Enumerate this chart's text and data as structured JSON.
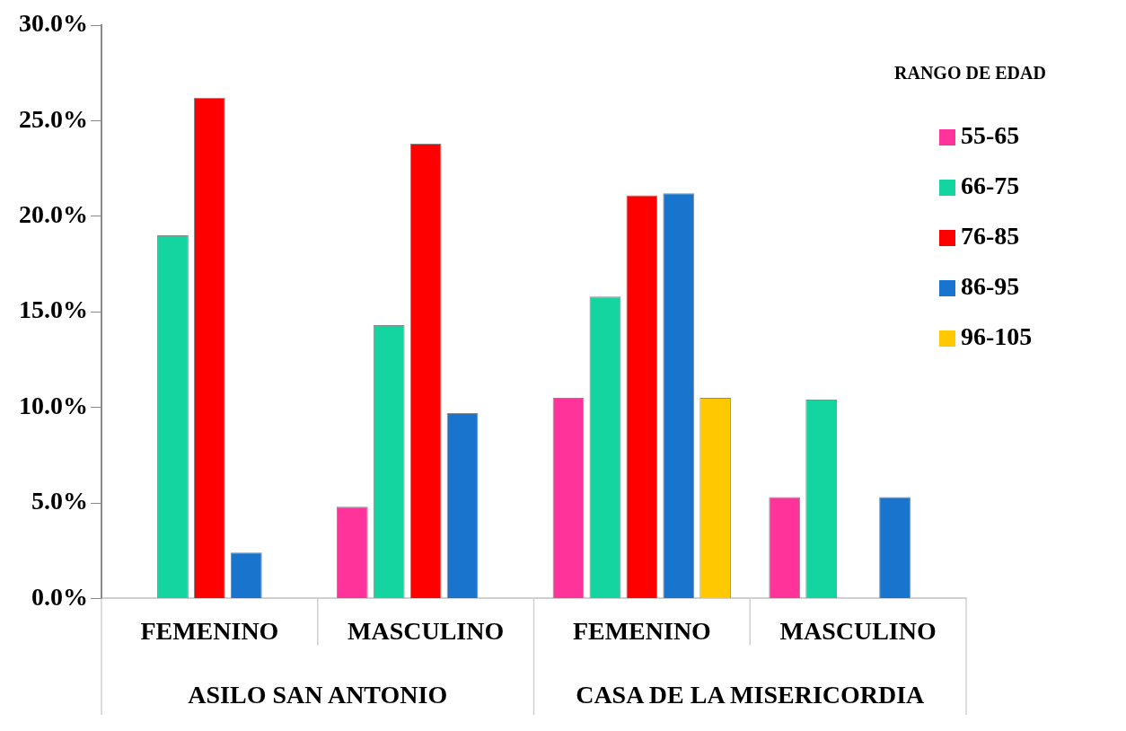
{
  "chart_data": {
    "type": "bar",
    "categories": [
      "FEMENINO",
      "MASCULINO",
      "FEMENINO",
      "MASCULINO"
    ],
    "series": [
      {
        "name": "55-65",
        "color": "#ff3399",
        "values": [
          null,
          4.8,
          10.5,
          5.3
        ]
      },
      {
        "name": "66-75",
        "color": "#14d4a0",
        "values": [
          19.0,
          14.3,
          15.8,
          10.4
        ]
      },
      {
        "name": "76-85",
        "color": "#ff0000",
        "values": [
          26.2,
          23.8,
          21.1,
          null
        ]
      },
      {
        "name": "86-95",
        "color": "#1874cd",
        "values": [
          2.4,
          9.7,
          21.2,
          5.3
        ]
      },
      {
        "name": "96-105",
        "color": "#ffc800",
        "values": [
          null,
          null,
          10.5,
          null
        ]
      }
    ],
    "ylim": [
      0,
      30
    ],
    "yticks": [
      {
        "value": 0,
        "label": "0.0%"
      },
      {
        "value": 5,
        "label": "5.0%"
      },
      {
        "value": 10,
        "label": "10.0%"
      },
      {
        "value": 15,
        "label": "15.0%"
      },
      {
        "value": 20,
        "label": "20.0%"
      },
      {
        "value": 25,
        "label": "25.0%"
      },
      {
        "value": 30,
        "label": "30.0%"
      }
    ],
    "legend": "top right",
    "legend_title": "RANGO DE EDAD",
    "annotations": [
      "ASILO SAN ANTONIO",
      "CASA DE LA MISERICORDIA"
    ]
  }
}
